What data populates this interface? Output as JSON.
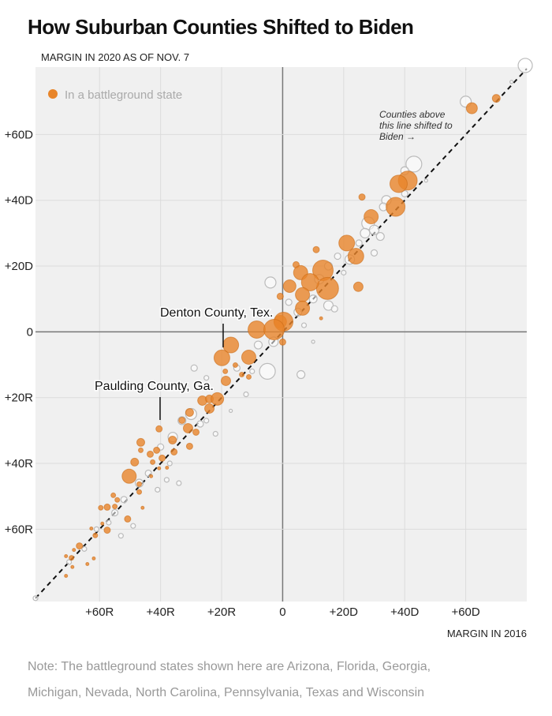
{
  "chart_data": {
    "type": "scatter",
    "title": "How Suburban Counties Shifted to Biden",
    "ylabel": "MARGIN IN 2020 AS OF NOV. 7",
    "xlabel": "MARGIN IN 2016",
    "xlim": [
      -81,
      80
    ],
    "ylim": [
      -82,
      80.5
    ],
    "grid": true,
    "x_ticks": [
      {
        "v": -60,
        "label": "+60R"
      },
      {
        "v": -40,
        "label": "+40R"
      },
      {
        "v": -20,
        "label": "+20R"
      },
      {
        "v": 0,
        "label": "0"
      },
      {
        "v": 20,
        "label": "+20D"
      },
      {
        "v": 40,
        "label": "+40D"
      },
      {
        "v": 60,
        "label": "+60D"
      }
    ],
    "y_ticks": [
      {
        "v": 60,
        "label": "+60D"
      },
      {
        "v": 40,
        "label": "+40D"
      },
      {
        "v": 20,
        "label": "+20D"
      },
      {
        "v": 0,
        "label": "0"
      },
      {
        "v": -20,
        "label": "+20R"
      },
      {
        "v": -40,
        "label": "+40R"
      },
      {
        "v": -60,
        "label": "+60R"
      }
    ],
    "legend": {
      "label": "In a battleground state",
      "placement": "top-left",
      "color": "#e8852a"
    },
    "reference_line": {
      "type": "y=x",
      "annotation": [
        "Counties above",
        "this line shifted to",
        "Biden →"
      ]
    },
    "annotations": [
      {
        "label": "Denton County, Tex.",
        "x": -20,
        "y": -5
      },
      {
        "label": "Paulding County, Ga.",
        "x": -41,
        "y": -29
      }
    ],
    "colors": {
      "battleground": "#e8852a",
      "other": "#bbbbbb",
      "plot_bg": "#f0f0f0"
    },
    "series": [
      {
        "name": "In a battleground state",
        "points_x_y_size": [
          [
            70,
            71,
            5
          ],
          [
            62,
            68,
            7
          ],
          [
            41,
            46,
            12
          ],
          [
            38,
            45,
            11
          ],
          [
            26,
            41,
            4
          ],
          [
            37,
            38,
            12
          ],
          [
            29,
            35,
            9
          ],
          [
            21,
            27,
            10
          ],
          [
            24,
            23,
            10
          ],
          [
            11,
            25,
            4
          ],
          [
            4.4,
            20.4,
            4
          ],
          [
            5.9,
            18,
            9
          ],
          [
            13.2,
            18.7,
            13
          ],
          [
            14.7,
            13.2,
            14
          ],
          [
            9,
            15.1,
            11
          ],
          [
            24.8,
            13.7,
            6
          ],
          [
            2.3,
            13.9,
            8
          ],
          [
            6.5,
            11.3,
            9
          ],
          [
            -0.8,
            10.8,
            4
          ],
          [
            6.5,
            7.2,
            9
          ],
          [
            12.6,
            4.1,
            2
          ],
          [
            -0.8,
            3.1,
            8
          ],
          [
            0.3,
            3.1,
            12
          ],
          [
            -8.5,
            0.7,
            11
          ],
          [
            -2.8,
            0.7,
            13
          ],
          [
            0,
            -3.1,
            4
          ],
          [
            -19.9,
            -7.9,
            10
          ],
          [
            -17,
            -4,
            10
          ],
          [
            -11.1,
            -7.7,
            9
          ],
          [
            -15.5,
            -10.1,
            3
          ],
          [
            -18.8,
            -12,
            3
          ],
          [
            -18.6,
            -14.9,
            6
          ],
          [
            -11.1,
            -13.7,
            3
          ],
          [
            -13.4,
            -13,
            3
          ],
          [
            -26.3,
            -20.9,
            6
          ],
          [
            -24,
            -20.4,
            5
          ],
          [
            -21.4,
            -20.4,
            8
          ],
          [
            -24,
            -23.3,
            6
          ],
          [
            -30.5,
            -24.5,
            5
          ],
          [
            -33,
            -26.9,
            4
          ],
          [
            -31,
            -29.3,
            6
          ],
          [
            -28.4,
            -30.5,
            4
          ],
          [
            -40.5,
            -29.5,
            4
          ],
          [
            -36.1,
            -32.9,
            5
          ],
          [
            -30.5,
            -34.8,
            4
          ],
          [
            -46.5,
            -33.6,
            5
          ],
          [
            -46.5,
            -36,
            3
          ],
          [
            -43.4,
            -37.2,
            4
          ],
          [
            -41.3,
            -36,
            4
          ],
          [
            -39.5,
            -38.4,
            4
          ],
          [
            -35.6,
            -36.5,
            4
          ],
          [
            -48.5,
            -39.6,
            5
          ],
          [
            -42.6,
            -39.6,
            3
          ],
          [
            -37.9,
            -41.3,
            2
          ],
          [
            -50.3,
            -43.9,
            9
          ],
          [
            -40.5,
            -41.5,
            2
          ],
          [
            -43.1,
            -43.9,
            2
          ],
          [
            -47,
            -46.3,
            3
          ],
          [
            -47,
            -48.7,
            3
          ],
          [
            -55.5,
            -49.7,
            3
          ],
          [
            -54.2,
            -51.1,
            3
          ],
          [
            -57.5,
            -53.3,
            4
          ],
          [
            -55,
            -53.1,
            3
          ],
          [
            -59.6,
            -53.5,
            3
          ],
          [
            -45.9,
            -53.5,
            2
          ],
          [
            -50.8,
            -56.9,
            4
          ],
          [
            -59.1,
            -58.3,
            2
          ],
          [
            -57.5,
            -60.3,
            4
          ],
          [
            -62.7,
            -59.8,
            2
          ],
          [
            -61.4,
            -61.9,
            3
          ],
          [
            -66.6,
            -65.1,
            4
          ],
          [
            -68.4,
            -66.3,
            2
          ],
          [
            -71,
            -68.2,
            2
          ],
          [
            -69.2,
            -68.7,
            3
          ],
          [
            -61.9,
            -68.9,
            2
          ],
          [
            -64,
            -70.6,
            2
          ],
          [
            -68.9,
            -71.5,
            2
          ],
          [
            -71,
            -74.2,
            2
          ]
        ]
      },
      {
        "name": "Other suburban counties",
        "points_x_y_size": [
          [
            79.5,
            81,
            9
          ],
          [
            75,
            76,
            2
          ],
          [
            60,
            70,
            7
          ],
          [
            43,
            51,
            10
          ],
          [
            40,
            49,
            5
          ],
          [
            47,
            46,
            2
          ],
          [
            40,
            42,
            4
          ],
          [
            34,
            40,
            6
          ],
          [
            33,
            38,
            5
          ],
          [
            28,
            33,
            8
          ],
          [
            30,
            31,
            6
          ],
          [
            32,
            29,
            5
          ],
          [
            27,
            30,
            6
          ],
          [
            25,
            27,
            4
          ],
          [
            30,
            24,
            4
          ],
          [
            22,
            22,
            6
          ],
          [
            18,
            23,
            4
          ],
          [
            15,
            20,
            5
          ],
          [
            20,
            18,
            3
          ],
          [
            12,
            16,
            6
          ],
          [
            10,
            10,
            5
          ],
          [
            15,
            8,
            6
          ],
          [
            17,
            7,
            4
          ],
          [
            -4,
            15,
            7
          ],
          [
            5,
            6,
            5
          ],
          [
            2,
            9,
            4
          ],
          [
            7,
            2,
            3
          ],
          [
            10,
            -3,
            2
          ],
          [
            -5,
            -12,
            10
          ],
          [
            6,
            -13,
            5
          ],
          [
            -3,
            -3,
            6
          ],
          [
            -8,
            -4,
            5
          ],
          [
            -10,
            -12,
            3
          ],
          [
            -15,
            -11,
            4
          ],
          [
            -12,
            -19,
            3
          ],
          [
            -17,
            -24,
            2
          ],
          [
            -29,
            -11,
            4
          ],
          [
            -25,
            -14,
            3
          ],
          [
            -30,
            -25,
            7
          ],
          [
            -33,
            -27,
            5
          ],
          [
            -27,
            -28,
            4
          ],
          [
            -36,
            -32,
            6
          ],
          [
            -22,
            -31,
            3
          ],
          [
            -25,
            -27,
            3
          ],
          [
            -40,
            -35,
            4
          ],
          [
            -37,
            -40,
            3
          ],
          [
            -44,
            -43,
            4
          ],
          [
            -38,
            -45,
            3
          ],
          [
            -34,
            -46,
            3
          ],
          [
            -47,
            -46,
            5
          ],
          [
            -41,
            -48,
            3
          ],
          [
            -52,
            -51,
            4
          ],
          [
            -55,
            -55,
            4
          ],
          [
            -57,
            -58,
            3
          ],
          [
            -49,
            -59,
            3
          ],
          [
            -53,
            -62,
            3
          ],
          [
            -61,
            -60,
            3
          ],
          [
            -65,
            -66,
            3
          ],
          [
            -70,
            -70,
            3
          ],
          [
            -81,
            -81,
            3
          ]
        ]
      }
    ]
  },
  "note": {
    "line1": "Note: The battleground states shown here are Arizona, Florida, Georgia,",
    "line2": "Michigan, Nevada, North Carolina, Pennsylvania, Texas and Wisconsin"
  }
}
